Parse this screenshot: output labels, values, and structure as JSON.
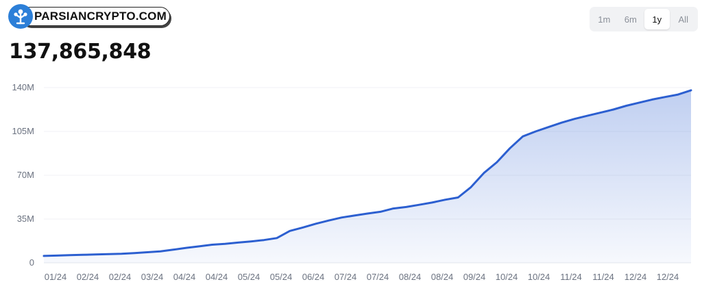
{
  "logo": {
    "text": "PARSIANCRYPTO.COM",
    "icon": "tree-logo-icon",
    "color": "#2c7fd8"
  },
  "headline_value": "137,865,848",
  "range": {
    "buttons": [
      "1m",
      "6m",
      "1y",
      "All"
    ],
    "selected": "1y"
  },
  "chart_data": {
    "type": "area",
    "title": "",
    "xlabel": "",
    "ylabel": "",
    "ylim": [
      0,
      140000000
    ],
    "y_ticks": [
      0,
      35000000,
      70000000,
      105000000,
      140000000
    ],
    "y_tick_labels": [
      "0",
      "35M",
      "70M",
      "105M",
      "140M"
    ],
    "x_tick_labels": [
      "01/24",
      "02/24",
      "02/24",
      "03/24",
      "04/24",
      "04/24",
      "05/24",
      "05/24",
      "06/24",
      "07/24",
      "07/24",
      "08/24",
      "08/24",
      "09/24",
      "10/24",
      "10/24",
      "11/24",
      "11/24",
      "12/24",
      "12/24"
    ],
    "grid": true,
    "color": "#2c5fd0",
    "series": [
      {
        "values": [
          5500000,
          5800000,
          6100000,
          6400000,
          6700000,
          7000000,
          7300000,
          7800000,
          8500000,
          9200000,
          10500000,
          12000000,
          13200000,
          14500000,
          15200000,
          16200000,
          17100000,
          18200000,
          19800000,
          25500000,
          28200000,
          31200000,
          33800000,
          36200000,
          37800000,
          39400000,
          40800000,
          43400000,
          44600000,
          46400000,
          48200000,
          50400000,
          52200000,
          60500000,
          71800000,
          80400000,
          91500000,
          101000000,
          105000000,
          108500000,
          112000000,
          115000000,
          117500000,
          120000000,
          122500000,
          125500000,
          128000000,
          130500000,
          132500000,
          134500000,
          137865848
        ]
      }
    ]
  }
}
